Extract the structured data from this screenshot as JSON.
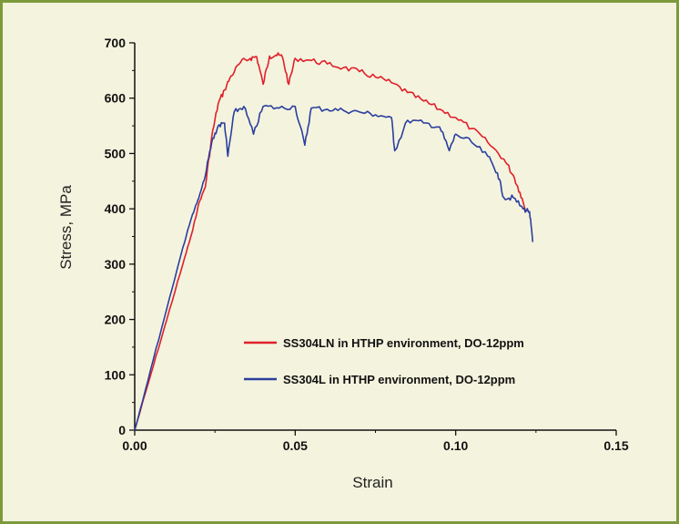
{
  "chart_data": {
    "type": "line",
    "title": "",
    "xlabel": "Strain",
    "ylabel": "Stress, MPa",
    "xlim": [
      0,
      0.15
    ],
    "ylim": [
      0,
      700
    ],
    "xticks": [
      "0.00",
      "0.05",
      "0.10",
      "0.15"
    ],
    "yticks": [
      "0",
      "100",
      "200",
      "300",
      "400",
      "500",
      "600",
      "700"
    ],
    "grid": false,
    "legend_position": "lower-right",
    "series": [
      {
        "name": "SS304LN in HTHP environment, DO-12ppm",
        "color": "#e0202a",
        "x": [
          0,
          0.005,
          0.01,
          0.015,
          0.018,
          0.02,
          0.022,
          0.024,
          0.026,
          0.028,
          0.03,
          0.033,
          0.036,
          0.038,
          0.04,
          0.042,
          0.044,
          0.046,
          0.048,
          0.05,
          0.055,
          0.06,
          0.065,
          0.07,
          0.075,
          0.08,
          0.085,
          0.09,
          0.095,
          0.1,
          0.105,
          0.11,
          0.115,
          0.118,
          0.12,
          0.122
        ],
        "y": [
          0,
          100,
          200,
          300,
          360,
          410,
          440,
          530,
          590,
          615,
          640,
          665,
          672,
          675,
          625,
          676,
          678,
          675,
          625,
          672,
          668,
          662,
          655,
          648,
          638,
          628,
          610,
          595,
          580,
          565,
          545,
          520,
          490,
          460,
          430,
          395
        ]
      },
      {
        "name": "SS304L in HTHP environment, DO-12ppm",
        "color": "#2a3f9e",
        "x": [
          0,
          0.005,
          0.01,
          0.015,
          0.018,
          0.02,
          0.022,
          0.024,
          0.026,
          0.028,
          0.029,
          0.031,
          0.034,
          0.037,
          0.04,
          0.045,
          0.05,
          0.053,
          0.055,
          0.06,
          0.065,
          0.07,
          0.075,
          0.08,
          0.081,
          0.085,
          0.09,
          0.095,
          0.098,
          0.1,
          0.105,
          0.11,
          0.113,
          0.115,
          0.118,
          0.121,
          0.123,
          0.124
        ],
        "y": [
          0,
          110,
          220,
          330,
          390,
          420,
          460,
          520,
          550,
          555,
          495,
          575,
          585,
          535,
          585,
          582,
          585,
          515,
          582,
          580,
          578,
          575,
          570,
          565,
          505,
          560,
          555,
          548,
          505,
          535,
          520,
          495,
          465,
          420,
          420,
          400,
          395,
          340
        ]
      }
    ]
  }
}
